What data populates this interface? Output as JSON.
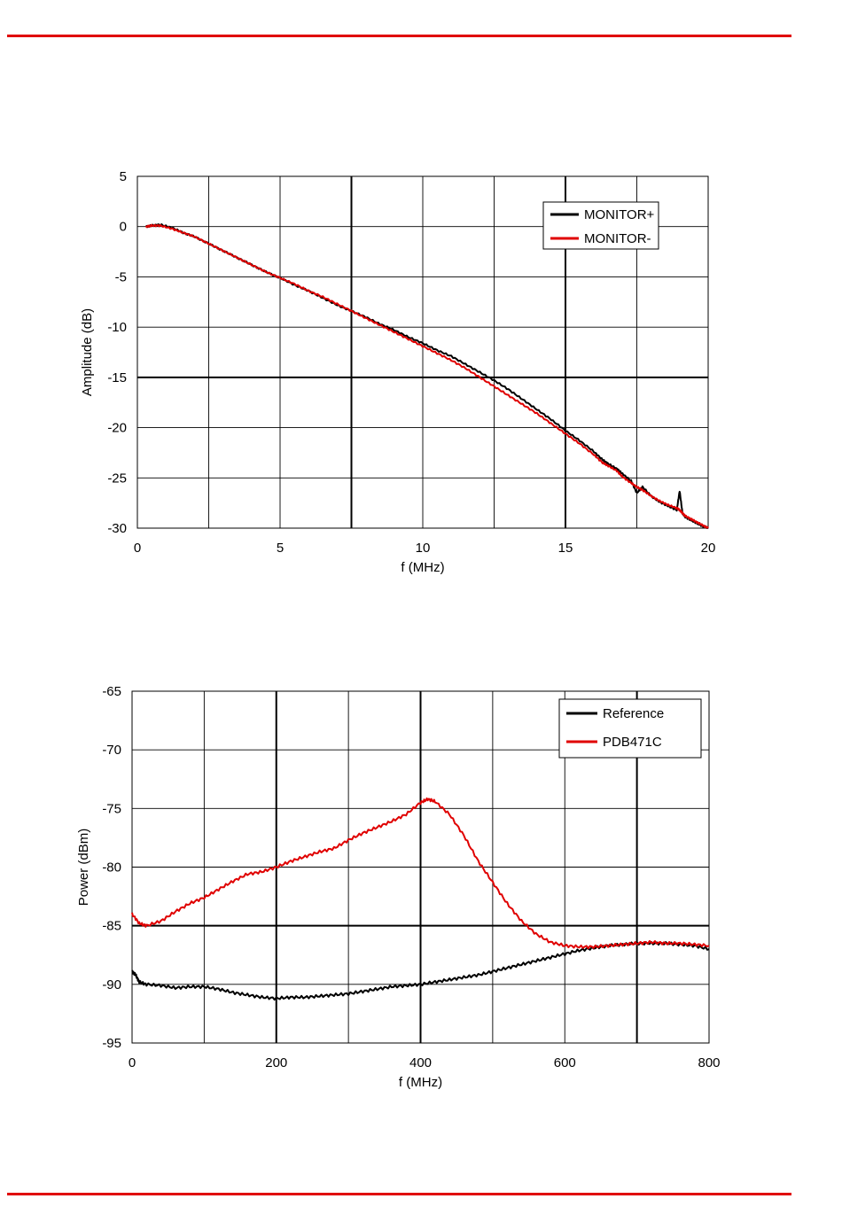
{
  "colors": {
    "rule": "#e00000",
    "black_series": "#000000",
    "red_series": "#e00000",
    "grid": "#000000"
  },
  "chart_data": [
    {
      "type": "line",
      "title": "",
      "xlabel": "f (MHz)",
      "ylabel": "Amplitude (dB)",
      "xlim": [
        0,
        20
      ],
      "ylim": [
        -30,
        5
      ],
      "xticks": [
        0,
        5,
        10,
        15,
        20
      ],
      "yticks": [
        5,
        0,
        -5,
        -10,
        -15,
        -20,
        -25,
        -30
      ],
      "xtick_labels": [
        "0",
        "5",
        "10",
        "15",
        "20"
      ],
      "ytick_labels": [
        "5",
        "0",
        "-5",
        "-10",
        "-15",
        "-20",
        "-25",
        "-30"
      ],
      "legend_position": "top-right",
      "series": [
        {
          "name": "MONITOR+",
          "color": "#000000",
          "x": [
            0.3,
            0.5,
            0.8,
            1.2,
            1.6,
            2.0,
            2.5,
            3.0,
            3.5,
            4.0,
            4.5,
            5.0,
            5.5,
            6.0,
            6.5,
            7.0,
            7.5,
            8.0,
            8.5,
            9.0,
            9.5,
            10.0,
            10.5,
            11.0,
            11.5,
            12.0,
            12.5,
            13.0,
            13.5,
            14.0,
            14.5,
            15.0,
            15.5,
            16.0,
            16.3,
            16.5,
            16.8,
            17.0,
            17.3,
            17.5,
            17.7,
            18.0,
            18.3,
            18.6,
            18.9,
            19.0,
            19.1,
            19.2,
            19.4,
            19.6,
            19.8,
            20.0
          ],
          "values": [
            0.0,
            0.1,
            0.2,
            -0.1,
            -0.6,
            -1.0,
            -1.7,
            -2.4,
            -3.1,
            -3.8,
            -4.5,
            -5.1,
            -5.8,
            -6.4,
            -7.1,
            -7.8,
            -8.4,
            -9.0,
            -9.7,
            -10.3,
            -11.0,
            -11.6,
            -12.3,
            -12.9,
            -13.7,
            -14.5,
            -15.3,
            -16.2,
            -17.2,
            -18.2,
            -19.2,
            -20.3,
            -21.3,
            -22.4,
            -23.2,
            -23.6,
            -24.1,
            -24.6,
            -25.3,
            -26.5,
            -25.9,
            -26.8,
            -27.4,
            -27.8,
            -28.2,
            -26.3,
            -28.5,
            -28.9,
            -29.2,
            -29.5,
            -29.8,
            -30.0
          ]
        },
        {
          "name": "MONITOR-",
          "color": "#e00000",
          "x": [
            0.3,
            0.5,
            0.8,
            1.2,
            1.6,
            2.0,
            2.5,
            3.0,
            3.5,
            4.0,
            4.5,
            5.0,
            5.5,
            6.0,
            6.5,
            7.0,
            7.5,
            8.0,
            8.5,
            9.0,
            9.5,
            10.0,
            10.5,
            11.0,
            11.5,
            12.0,
            12.5,
            13.0,
            13.5,
            14.0,
            14.5,
            15.0,
            15.5,
            16.0,
            16.3,
            16.5,
            16.8,
            17.0,
            17.3,
            17.5,
            17.7,
            18.0,
            18.3,
            18.6,
            18.9,
            19.0,
            19.1,
            19.2,
            19.4,
            19.6,
            19.8,
            20.0
          ],
          "values": [
            0.0,
            0.1,
            0.1,
            -0.2,
            -0.6,
            -1.0,
            -1.7,
            -2.4,
            -3.1,
            -3.8,
            -4.5,
            -5.1,
            -5.7,
            -6.4,
            -7.0,
            -7.7,
            -8.4,
            -9.1,
            -9.8,
            -10.5,
            -11.2,
            -11.9,
            -12.6,
            -13.3,
            -14.1,
            -15.0,
            -15.9,
            -16.8,
            -17.7,
            -18.6,
            -19.6,
            -20.6,
            -21.6,
            -22.7,
            -23.5,
            -23.8,
            -24.3,
            -24.9,
            -25.5,
            -25.9,
            -26.2,
            -26.8,
            -27.3,
            -27.7,
            -28.0,
            -28.2,
            -28.5,
            -28.8,
            -29.1,
            -29.4,
            -29.7,
            -30.0
          ]
        }
      ]
    },
    {
      "type": "line",
      "title": "",
      "xlabel": "f (MHz)",
      "ylabel": "Power (dBm)",
      "xlim": [
        0,
        800
      ],
      "ylim": [
        -95,
        -65
      ],
      "xticks": [
        0,
        200,
        400,
        600,
        800
      ],
      "yticks": [
        -65,
        -70,
        -75,
        -80,
        -85,
        -90,
        -95
      ],
      "xtick_labels": [
        "0",
        "200",
        "400",
        "600",
        "800"
      ],
      "ytick_labels": [
        "-65",
        "-70",
        "-75",
        "-80",
        "-85",
        "-90",
        "-95"
      ],
      "legend_position": "top-right",
      "series": [
        {
          "name": "Reference",
          "color": "#000000",
          "x": [
            0,
            5,
            10,
            20,
            40,
            60,
            80,
            100,
            120,
            140,
            160,
            180,
            200,
            220,
            240,
            260,
            280,
            300,
            320,
            340,
            360,
            380,
            400,
            420,
            440,
            460,
            480,
            500,
            520,
            540,
            560,
            580,
            600,
            620,
            640,
            660,
            680,
            700,
            720,
            740,
            760,
            780,
            800
          ],
          "values": [
            -88.9,
            -89.2,
            -89.8,
            -90.0,
            -90.1,
            -90.3,
            -90.2,
            -90.2,
            -90.4,
            -90.7,
            -90.9,
            -91.1,
            -91.2,
            -91.1,
            -91.1,
            -91.0,
            -90.9,
            -90.8,
            -90.6,
            -90.4,
            -90.2,
            -90.1,
            -90.0,
            -89.8,
            -89.6,
            -89.4,
            -89.2,
            -88.9,
            -88.6,
            -88.3,
            -88.0,
            -87.7,
            -87.4,
            -87.1,
            -86.9,
            -86.7,
            -86.6,
            -86.5,
            -86.5,
            -86.5,
            -86.6,
            -86.7,
            -87.0
          ]
        },
        {
          "name": "PDB471C",
          "color": "#e00000",
          "x": [
            0,
            10,
            20,
            40,
            60,
            80,
            100,
            120,
            140,
            160,
            180,
            200,
            220,
            240,
            260,
            280,
            300,
            320,
            340,
            360,
            380,
            400,
            410,
            420,
            440,
            460,
            480,
            500,
            520,
            540,
            560,
            580,
            600,
            620,
            640,
            660,
            680,
            700,
            720,
            740,
            760,
            780,
            800
          ],
          "values": [
            -84.0,
            -84.8,
            -85.0,
            -84.6,
            -83.8,
            -83.1,
            -82.6,
            -81.9,
            -81.2,
            -80.6,
            -80.4,
            -80.0,
            -79.5,
            -79.1,
            -78.7,
            -78.4,
            -77.7,
            -77.1,
            -76.6,
            -76.1,
            -75.5,
            -74.5,
            -74.2,
            -74.4,
            -75.5,
            -77.3,
            -79.5,
            -81.3,
            -83.1,
            -84.6,
            -85.7,
            -86.4,
            -86.7,
            -86.8,
            -86.8,
            -86.7,
            -86.6,
            -86.5,
            -86.4,
            -86.5,
            -86.5,
            -86.6,
            -86.7
          ]
        }
      ]
    }
  ]
}
